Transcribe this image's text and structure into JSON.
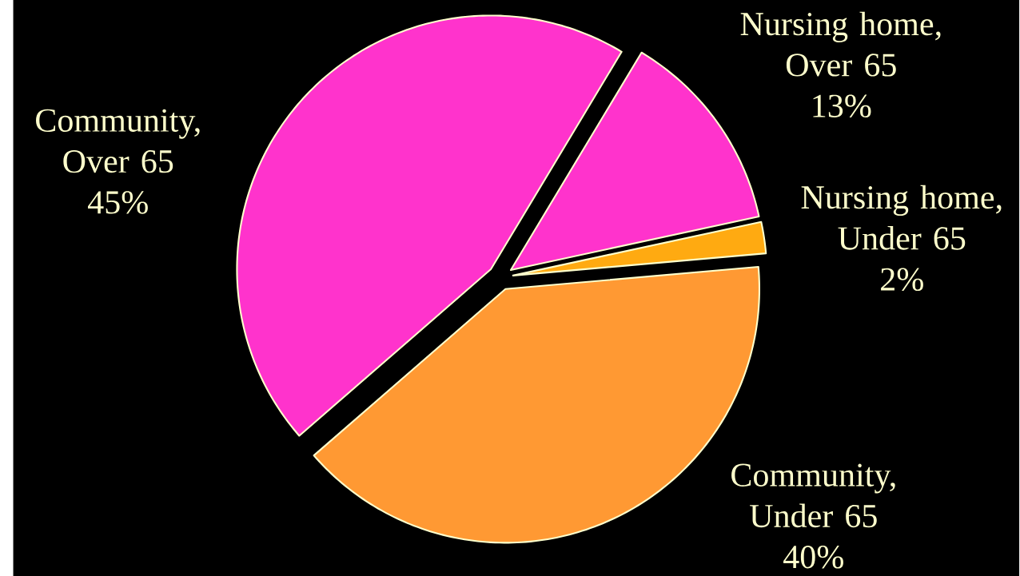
{
  "chart_data": {
    "type": "pie",
    "categories": [
      "Nursing home, Over 65",
      "Nursing home, Under 65",
      "Community, Under 65",
      "Community, Over 65"
    ],
    "values": [
      13,
      2,
      40,
      45
    ],
    "value_labels": [
      "13%",
      "2%",
      "40%",
      "45%"
    ],
    "colors": [
      "#ff33cc",
      "#ffaa11",
      "#ff9933",
      "#ff33cc"
    ]
  }
}
